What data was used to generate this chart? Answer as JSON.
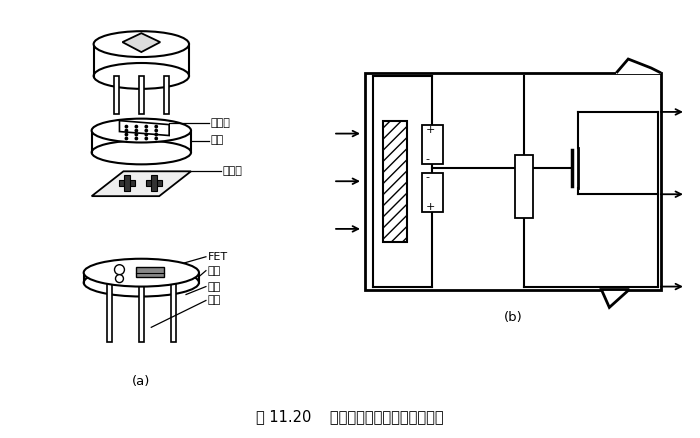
{
  "title": "图 11.20    热释电人体红外传感器的结构",
  "label_a": "(a)",
  "label_b": "(b)",
  "labels": {
    "filter": "滤光片",
    "cap": "管帽",
    "element": "敏感元",
    "fet": "FET",
    "socket": "管座",
    "resistor": "高阻",
    "lead": "引线"
  },
  "bg_color": "#ffffff",
  "line_color": "#000000"
}
